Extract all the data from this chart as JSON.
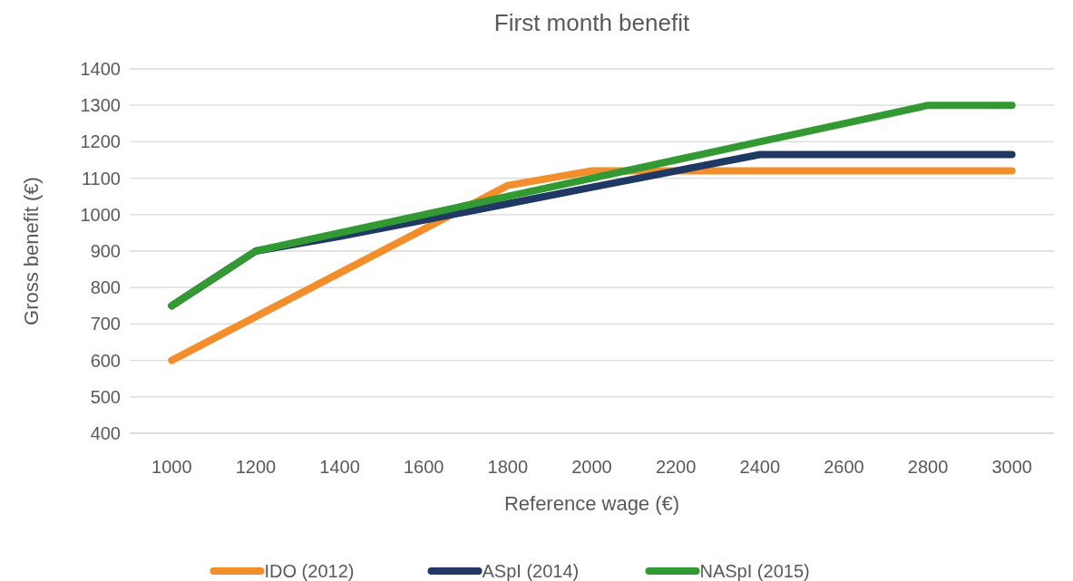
{
  "chart_data": {
    "type": "line",
    "title": "First month benefit",
    "xlabel": "Reference wage (€)",
    "ylabel": "Gross benefit (€)",
    "categories": [
      "1000",
      "1200",
      "1400",
      "1600",
      "1800",
      "2000",
      "2200",
      "2400",
      "2600",
      "2800",
      "3000"
    ],
    "series": [
      {
        "name": "IDO (2012)",
        "color": "#f28e2b",
        "values": [
          600,
          720,
          840,
          960,
          1080,
          1120,
          1120,
          1120,
          1120,
          1120,
          1120
        ]
      },
      {
        "name": "ASpI (2014)",
        "color": "#203864",
        "values": [
          750,
          900,
          940,
          985,
          1030,
          1075,
          1120,
          1165,
          1165,
          1165,
          1165
        ]
      },
      {
        "name": "NASpI (2015)",
        "color": "#339933",
        "values": [
          750,
          900,
          950,
          1000,
          1050,
          1100,
          1150,
          1200,
          1250,
          1300,
          1300
        ]
      }
    ],
    "ylim": [
      400,
      1400
    ],
    "yticks": [
      400,
      500,
      600,
      700,
      800,
      900,
      1000,
      1100,
      1200,
      1300,
      1400
    ],
    "grid": "y",
    "legend": "bottom",
    "marker": "none",
    "line_style": "solid"
  }
}
